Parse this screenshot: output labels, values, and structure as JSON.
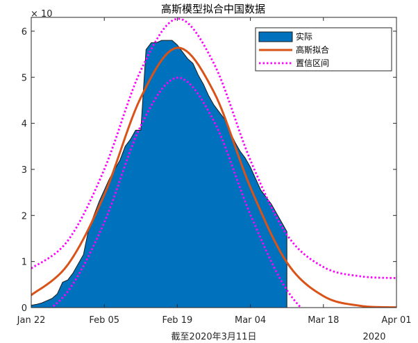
{
  "chart_data": {
    "type": "area",
    "title": "高斯模型拟合中国数据",
    "xlabel": "截至2020年3月11日",
    "ylabel": "",
    "y_exponent_label": "× 10",
    "year_label": "2020",
    "x_ticks": [
      "Jan 22",
      "Feb 05",
      "Feb 19",
      "Mar 04",
      "Mar 18",
      "Apr 01"
    ],
    "y_ticks": [
      "0",
      "1",
      "2",
      "3",
      "4",
      "5",
      "6"
    ],
    "xlim": [
      "2020-01-22",
      "2020-04-01"
    ],
    "ylim": [
      0,
      6.3
    ],
    "grid": false,
    "legend_position": "top-right",
    "legend": [
      "实际",
      "高斯拟合",
      "置信区间"
    ],
    "colors": {
      "actual": "#0072BD",
      "fit": "#D95319",
      "ci": "#FF00FF"
    },
    "series": [
      {
        "name": "实际",
        "kind": "area",
        "x": [
          "2020-01-22",
          "2020-01-23",
          "2020-01-24",
          "2020-01-25",
          "2020-01-26",
          "2020-01-27",
          "2020-01-28",
          "2020-01-29",
          "2020-01-30",
          "2020-01-31",
          "2020-02-01",
          "2020-02-02",
          "2020-02-03",
          "2020-02-04",
          "2020-02-05",
          "2020-02-06",
          "2020-02-07",
          "2020-02-08",
          "2020-02-09",
          "2020-02-10",
          "2020-02-11",
          "2020-02-12",
          "2020-02-13",
          "2020-02-14",
          "2020-02-15",
          "2020-02-16",
          "2020-02-17",
          "2020-02-18",
          "2020-02-19",
          "2020-02-20",
          "2020-02-21",
          "2020-02-22",
          "2020-02-23",
          "2020-02-24",
          "2020-02-25",
          "2020-02-26",
          "2020-02-27",
          "2020-02-28",
          "2020-02-29",
          "2020-03-01",
          "2020-03-02",
          "2020-03-03",
          "2020-03-04",
          "2020-03-05",
          "2020-03-06",
          "2020-03-07",
          "2020-03-08",
          "2020-03-09",
          "2020-03-10",
          "2020-03-11"
        ],
        "values": [
          0.05,
          0.07,
          0.1,
          0.15,
          0.2,
          0.3,
          0.55,
          0.6,
          0.75,
          0.95,
          1.15,
          1.7,
          2.0,
          2.3,
          2.55,
          2.8,
          3.0,
          3.2,
          3.5,
          3.65,
          3.85,
          3.85,
          5.6,
          5.75,
          5.75,
          5.8,
          5.8,
          5.8,
          5.7,
          5.55,
          5.4,
          5.3,
          5.05,
          4.85,
          4.6,
          4.4,
          4.25,
          4.1,
          3.85,
          3.6,
          3.4,
          3.25,
          3.05,
          2.8,
          2.55,
          2.4,
          2.25,
          2.05,
          1.85,
          1.65
        ]
      },
      {
        "name": "高斯拟合",
        "kind": "line",
        "x": [
          "2020-01-22",
          "2020-01-29",
          "2020-02-05",
          "2020-02-12",
          "2020-02-19",
          "2020-02-26",
          "2020-03-04",
          "2020-03-11",
          "2020-03-18",
          "2020-03-25",
          "2020-04-01"
        ],
        "values": [
          0.27,
          0.93,
          2.45,
          4.56,
          5.64,
          4.68,
          2.61,
          0.98,
          0.25,
          0.04,
          0.004
        ]
      },
      {
        "name": "置信区间",
        "kind": "line",
        "style": "dotted",
        "bounds": {
          "upper": {
            "x": [
              "2020-01-22",
              "2020-01-29",
              "2020-02-05",
              "2020-02-12",
              "2020-02-19",
              "2020-02-26",
              "2020-03-04",
              "2020-03-11",
              "2020-03-18",
              "2020-03-25",
              "2020-04-01"
            ],
            "values": [
              0.85,
              1.45,
              3.0,
              5.15,
              6.27,
              5.3,
              3.2,
              1.58,
              0.88,
              0.68,
              0.64
            ]
          },
          "lower": {
            "x": [
              "2020-01-22",
              "2020-01-29",
              "2020-02-05",
              "2020-02-12",
              "2020-02-19",
              "2020-02-26",
              "2020-03-04",
              "2020-03-11",
              "2020-03-18",
              "2020-03-25",
              "2020-04-01"
            ],
            "values": [
              -0.3,
              0.35,
              1.85,
              3.95,
              4.99,
              4.05,
              2.02,
              0.38,
              -0.38,
              -0.6,
              -0.62
            ]
          }
        }
      }
    ]
  }
}
